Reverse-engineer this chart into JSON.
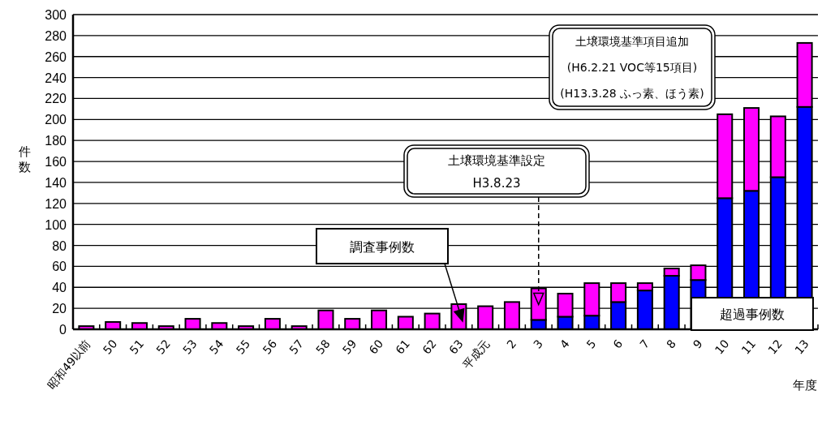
{
  "chart_data": {
    "type": "bar",
    "stacked": true,
    "xlabel": "年度",
    "ylabel": "件数",
    "categories": [
      "昭和49以前",
      "50",
      "51",
      "52",
      "53",
      "54",
      "55",
      "56",
      "57",
      "58",
      "59",
      "60",
      "61",
      "62",
      "63",
      "平成元",
      "2",
      "3",
      "4",
      "5",
      "6",
      "7",
      "8",
      "9",
      "10",
      "11",
      "12",
      "13"
    ],
    "series": [
      {
        "name": "超過事例数",
        "color": "#0000ff",
        "values": [
          0,
          0,
          0,
          0,
          0,
          0,
          0,
          0,
          0,
          0,
          0,
          0,
          0,
          0,
          0,
          0,
          0,
          9,
          12,
          13,
          26,
          37,
          51,
          47,
          125,
          132,
          145,
          212
        ]
      },
      {
        "name": "調査事例数",
        "color": "#ff00ff",
        "values": [
          3,
          7,
          6,
          3,
          10,
          6,
          3,
          10,
          3,
          18,
          10,
          18,
          12,
          15,
          24,
          22,
          26,
          30,
          22,
          31,
          18,
          7,
          7,
          14,
          80,
          79,
          58,
          61
        ]
      }
    ],
    "ylim": [
      0,
      300
    ],
    "yticks": [
      0,
      20,
      40,
      60,
      80,
      100,
      120,
      140,
      160,
      180,
      200,
      220,
      240,
      260,
      280,
      300
    ],
    "grid": "y",
    "annotations": [
      {
        "text": "土壌環境基準設定\nH3.8.23",
        "x": "3",
        "y": 39
      },
      "土壌環境基準項目追加\n(H6.2.21 VOC等15項目)\n(H13.3.28 ふっ素、ほう素)"
    ]
  }
}
